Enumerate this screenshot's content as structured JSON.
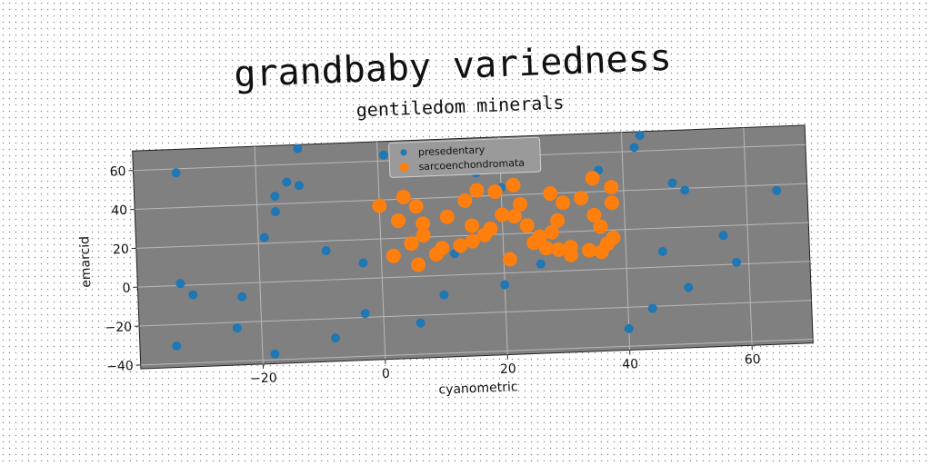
{
  "chart_data": {
    "type": "scatter",
    "title": "grandbaby variedness",
    "subtitle": "gentiledom minerals",
    "xlabel": "cyanometric",
    "ylabel": "emarcid",
    "xlim": [
      -40,
      70
    ],
    "ylim": [
      -42,
      70
    ],
    "xticks": [
      -20,
      0,
      20,
      40,
      60
    ],
    "yticks": [
      -40,
      -20,
      0,
      20,
      40,
      60
    ],
    "grid": true,
    "legend_position": "top-center",
    "plot_background": "#808080",
    "series": [
      {
        "name": "presedentary",
        "color": "#1f77b4",
        "points": [
          [
            -33,
            58
          ],
          [
            -33,
            1
          ],
          [
            -31,
            -5
          ],
          [
            -34,
            -31
          ],
          [
            -24,
            -23
          ],
          [
            -23,
            -7
          ],
          [
            -19,
            23
          ],
          [
            -18,
            -37
          ],
          [
            -17,
            44
          ],
          [
            -17,
            36
          ],
          [
            -15,
            51
          ],
          [
            -13,
            68
          ],
          [
            -13,
            49
          ],
          [
            -9,
            15
          ],
          [
            -8,
            -30
          ],
          [
            -3,
            8
          ],
          [
            -3,
            -18
          ],
          [
            1,
            63
          ],
          [
            6,
            -24
          ],
          [
            10,
            -10
          ],
          [
            12,
            11
          ],
          [
            16,
            52
          ],
          [
            20,
            -6
          ],
          [
            20,
            44
          ],
          [
            26,
            4
          ],
          [
            36,
            51
          ],
          [
            40,
            -31
          ],
          [
            42,
            62
          ],
          [
            43,
            68
          ],
          [
            44,
            -21
          ],
          [
            46,
            8
          ],
          [
            48,
            43
          ],
          [
            50,
            39
          ],
          [
            50,
            -11
          ],
          [
            56,
            15
          ],
          [
            58,
            1
          ],
          [
            65,
            37
          ]
        ]
      },
      {
        "name": "sarcoenchondromata",
        "color": "#ff7f0e",
        "points": [
          [
            0,
            37
          ],
          [
            2,
            11
          ],
          [
            3,
            29
          ],
          [
            4,
            41
          ],
          [
            5,
            17
          ],
          [
            6,
            6
          ],
          [
            6,
            36
          ],
          [
            7,
            27
          ],
          [
            7,
            21
          ],
          [
            9,
            11
          ],
          [
            10,
            14
          ],
          [
            11,
            30
          ],
          [
            13,
            15
          ],
          [
            14,
            38
          ],
          [
            15,
            17
          ],
          [
            15,
            25
          ],
          [
            16,
            43
          ],
          [
            17,
            20
          ],
          [
            18,
            23
          ],
          [
            19,
            42
          ],
          [
            20,
            30
          ],
          [
            21,
            7
          ],
          [
            22,
            29
          ],
          [
            22,
            45
          ],
          [
            23,
            35
          ],
          [
            24,
            24
          ],
          [
            25,
            15
          ],
          [
            26,
            18
          ],
          [
            27,
            12
          ],
          [
            28,
            20
          ],
          [
            28,
            40
          ],
          [
            29,
            26
          ],
          [
            29,
            11
          ],
          [
            30,
            35
          ],
          [
            31,
            8
          ],
          [
            31,
            12
          ],
          [
            33,
            37
          ],
          [
            34,
            10
          ],
          [
            35,
            47
          ],
          [
            35,
            28
          ],
          [
            36,
            22
          ],
          [
            36,
            9
          ],
          [
            38,
            42
          ],
          [
            38,
            34
          ],
          [
            38,
            16
          ],
          [
            37,
            13
          ]
        ]
      }
    ]
  }
}
